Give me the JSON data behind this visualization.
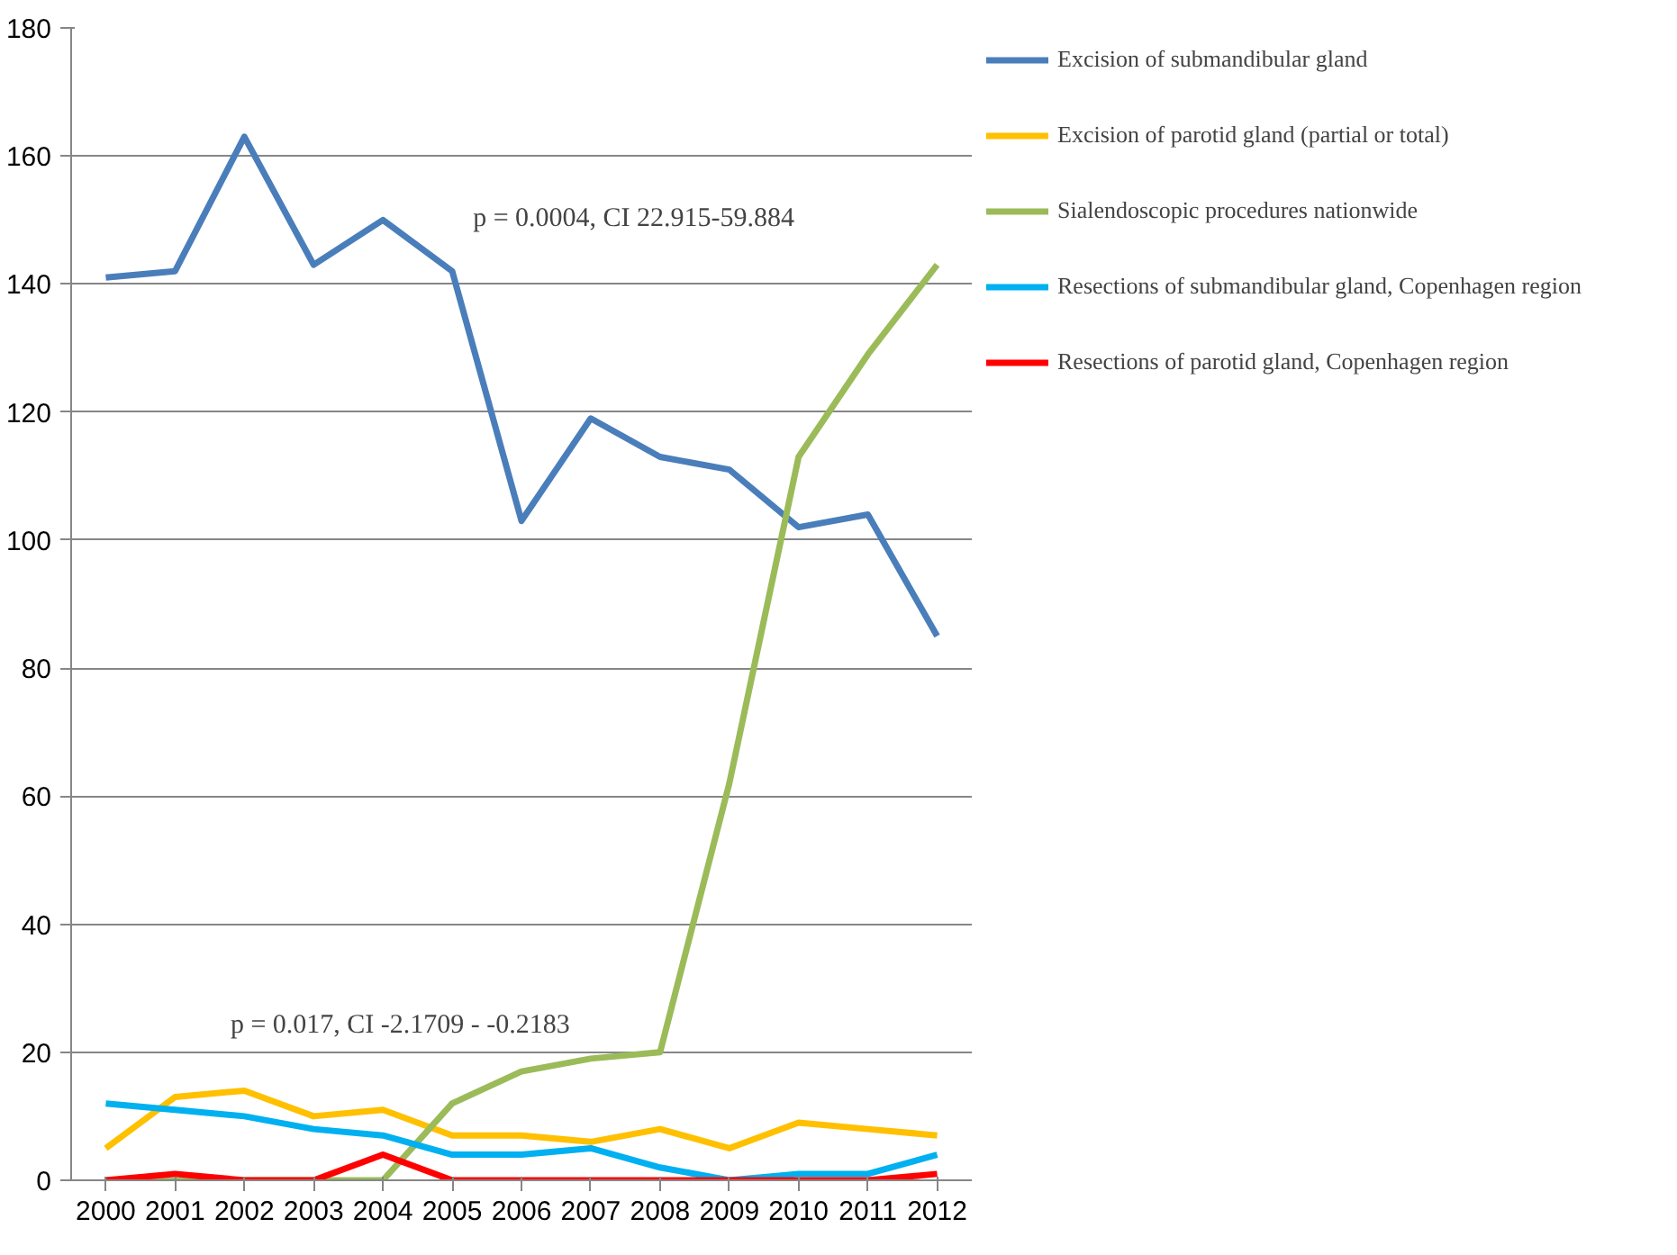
{
  "chart_data": {
    "type": "line",
    "categories": [
      "2000",
      "2001",
      "2002",
      "2003",
      "2004",
      "2005",
      "2006",
      "2007",
      "2008",
      "2009",
      "2010",
      "2011",
      "2012"
    ],
    "series": [
      {
        "name": "Excision of submandibular gland",
        "color": "#4a7ebb",
        "values": [
          141,
          142,
          163,
          143,
          150,
          142,
          103,
          119,
          113,
          111,
          102,
          104,
          85
        ]
      },
      {
        "name": "Excision of parotid gland (partial or total)",
        "color": "#ffc000",
        "values": [
          5,
          13,
          14,
          10,
          11,
          7,
          7,
          6,
          8,
          5,
          9,
          8,
          7
        ]
      },
      {
        "name": "Sialendoscopic procedures nationwide",
        "color": "#9bbb59",
        "values": [
          0,
          0,
          0,
          0,
          0,
          12,
          17,
          19,
          20,
          62,
          113,
          129,
          143
        ]
      },
      {
        "name": "Resections of submandibular gland, Copenhagen region",
        "color": "#00b0f0",
        "values": [
          12,
          11,
          10,
          8,
          7,
          4,
          4,
          5,
          2,
          0,
          1,
          1,
          4
        ]
      },
      {
        "name": "Resections of parotid gland, Copenhagen region",
        "color": "#ff0000",
        "values": [
          0,
          1,
          0,
          0,
          4,
          0,
          0,
          0,
          0,
          0,
          0,
          0,
          1
        ]
      }
    ],
    "annotations": [
      "p = 0.0004, CI 22.915-59.884",
      "p = 0.017, CI -2.1709 -  -0.2183"
    ],
    "ylim": [
      0,
      180
    ],
    "yticks": [
      0,
      20,
      40,
      60,
      80,
      100,
      120,
      140,
      160,
      180
    ],
    "grid": "y",
    "legend": "right",
    "marker": "none",
    "line_style": "solid"
  }
}
